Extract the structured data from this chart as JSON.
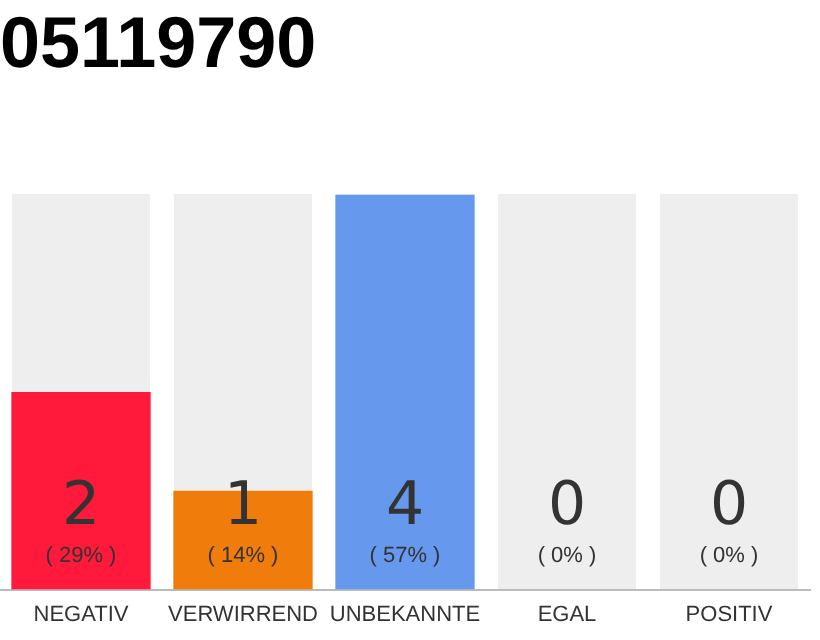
{
  "chart_data": {
    "type": "bar",
    "title": "05119790",
    "categories": [
      "NEGATIV",
      "VERWIRREND",
      "UNBEKANNTE",
      "EGAL",
      "POSITIV"
    ],
    "values": [
      2,
      1,
      4,
      0,
      0
    ],
    "colors": [
      "#ff1a3c",
      "#f07d0b",
      "#6699ee",
      "#cccccc",
      "#cccccc"
    ],
    "value_labels": [
      "2",
      "1",
      "4",
      "0",
      "0"
    ],
    "annotations": [
      "( 29% )",
      "( 14% )",
      "( 57% )",
      "( 0% )",
      "( 0% )"
    ],
    "grid": false,
    "legend": false,
    "tick_labels": "x"
  }
}
